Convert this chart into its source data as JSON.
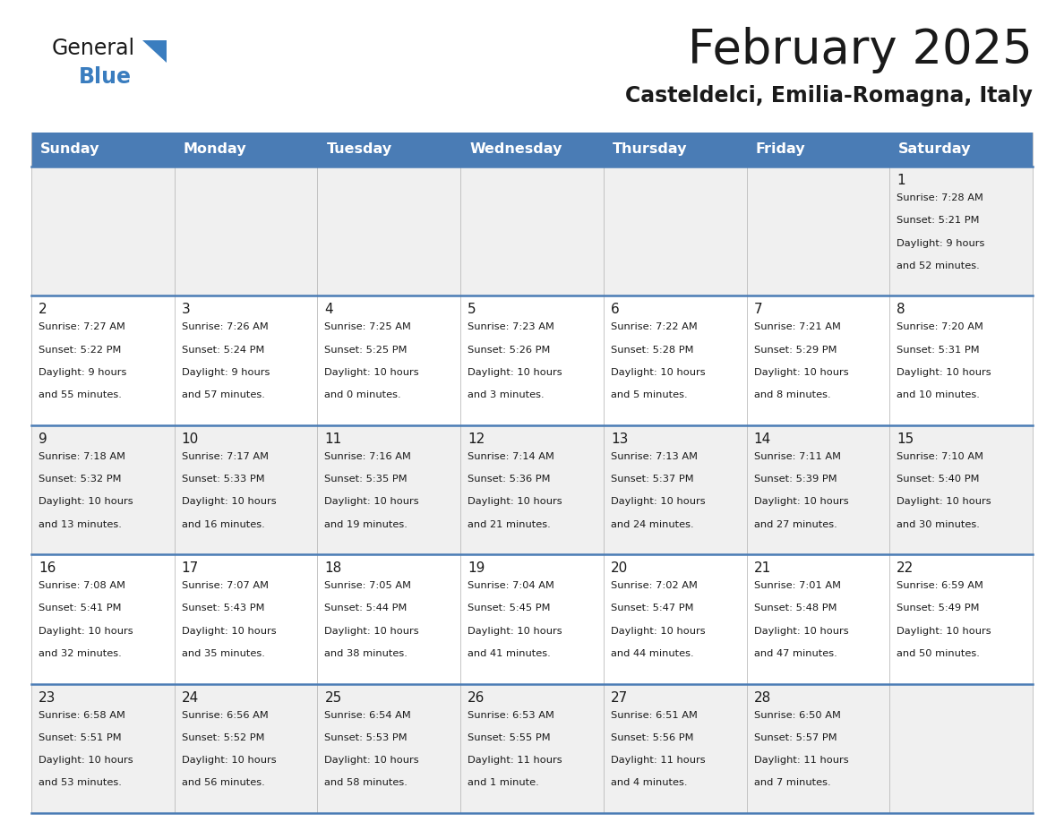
{
  "title": "February 2025",
  "subtitle": "Casteldelci, Emilia-Romagna, Italy",
  "header_bg": "#4a7cb5",
  "header_text": "#ffffff",
  "row_bg_even": "#f0f0f0",
  "row_bg_odd": "#ffffff",
  "separator_color": "#4a7cb5",
  "cell_line_color": "#bbbbbb",
  "days_of_week": [
    "Sunday",
    "Monday",
    "Tuesday",
    "Wednesday",
    "Thursday",
    "Friday",
    "Saturday"
  ],
  "calendar_data": [
    [
      null,
      null,
      null,
      null,
      null,
      null,
      {
        "day": "1",
        "sunrise": "7:28 AM",
        "sunset": "5:21 PM",
        "daylight1": "9 hours",
        "daylight2": "and 52 minutes."
      }
    ],
    [
      {
        "day": "2",
        "sunrise": "7:27 AM",
        "sunset": "5:22 PM",
        "daylight1": "9 hours",
        "daylight2": "and 55 minutes."
      },
      {
        "day": "3",
        "sunrise": "7:26 AM",
        "sunset": "5:24 PM",
        "daylight1": "9 hours",
        "daylight2": "and 57 minutes."
      },
      {
        "day": "4",
        "sunrise": "7:25 AM",
        "sunset": "5:25 PM",
        "daylight1": "10 hours",
        "daylight2": "and 0 minutes."
      },
      {
        "day": "5",
        "sunrise": "7:23 AM",
        "sunset": "5:26 PM",
        "daylight1": "10 hours",
        "daylight2": "and 3 minutes."
      },
      {
        "day": "6",
        "sunrise": "7:22 AM",
        "sunset": "5:28 PM",
        "daylight1": "10 hours",
        "daylight2": "and 5 minutes."
      },
      {
        "day": "7",
        "sunrise": "7:21 AM",
        "sunset": "5:29 PM",
        "daylight1": "10 hours",
        "daylight2": "and 8 minutes."
      },
      {
        "day": "8",
        "sunrise": "7:20 AM",
        "sunset": "5:31 PM",
        "daylight1": "10 hours",
        "daylight2": "and 10 minutes."
      }
    ],
    [
      {
        "day": "9",
        "sunrise": "7:18 AM",
        "sunset": "5:32 PM",
        "daylight1": "10 hours",
        "daylight2": "and 13 minutes."
      },
      {
        "day": "10",
        "sunrise": "7:17 AM",
        "sunset": "5:33 PM",
        "daylight1": "10 hours",
        "daylight2": "and 16 minutes."
      },
      {
        "day": "11",
        "sunrise": "7:16 AM",
        "sunset": "5:35 PM",
        "daylight1": "10 hours",
        "daylight2": "and 19 minutes."
      },
      {
        "day": "12",
        "sunrise": "7:14 AM",
        "sunset": "5:36 PM",
        "daylight1": "10 hours",
        "daylight2": "and 21 minutes."
      },
      {
        "day": "13",
        "sunrise": "7:13 AM",
        "sunset": "5:37 PM",
        "daylight1": "10 hours",
        "daylight2": "and 24 minutes."
      },
      {
        "day": "14",
        "sunrise": "7:11 AM",
        "sunset": "5:39 PM",
        "daylight1": "10 hours",
        "daylight2": "and 27 minutes."
      },
      {
        "day": "15",
        "sunrise": "7:10 AM",
        "sunset": "5:40 PM",
        "daylight1": "10 hours",
        "daylight2": "and 30 minutes."
      }
    ],
    [
      {
        "day": "16",
        "sunrise": "7:08 AM",
        "sunset": "5:41 PM",
        "daylight1": "10 hours",
        "daylight2": "and 32 minutes."
      },
      {
        "day": "17",
        "sunrise": "7:07 AM",
        "sunset": "5:43 PM",
        "daylight1": "10 hours",
        "daylight2": "and 35 minutes."
      },
      {
        "day": "18",
        "sunrise": "7:05 AM",
        "sunset": "5:44 PM",
        "daylight1": "10 hours",
        "daylight2": "and 38 minutes."
      },
      {
        "day": "19",
        "sunrise": "7:04 AM",
        "sunset": "5:45 PM",
        "daylight1": "10 hours",
        "daylight2": "and 41 minutes."
      },
      {
        "day": "20",
        "sunrise": "7:02 AM",
        "sunset": "5:47 PM",
        "daylight1": "10 hours",
        "daylight2": "and 44 minutes."
      },
      {
        "day": "21",
        "sunrise": "7:01 AM",
        "sunset": "5:48 PM",
        "daylight1": "10 hours",
        "daylight2": "and 47 minutes."
      },
      {
        "day": "22",
        "sunrise": "6:59 AM",
        "sunset": "5:49 PM",
        "daylight1": "10 hours",
        "daylight2": "and 50 minutes."
      }
    ],
    [
      {
        "day": "23",
        "sunrise": "6:58 AM",
        "sunset": "5:51 PM",
        "daylight1": "10 hours",
        "daylight2": "and 53 minutes."
      },
      {
        "day": "24",
        "sunrise": "6:56 AM",
        "sunset": "5:52 PM",
        "daylight1": "10 hours",
        "daylight2": "and 56 minutes."
      },
      {
        "day": "25",
        "sunrise": "6:54 AM",
        "sunset": "5:53 PM",
        "daylight1": "10 hours",
        "daylight2": "and 58 minutes."
      },
      {
        "day": "26",
        "sunrise": "6:53 AM",
        "sunset": "5:55 PM",
        "daylight1": "11 hours",
        "daylight2": "and 1 minute."
      },
      {
        "day": "27",
        "sunrise": "6:51 AM",
        "sunset": "5:56 PM",
        "daylight1": "11 hours",
        "daylight2": "and 4 minutes."
      },
      {
        "day": "28",
        "sunrise": "6:50 AM",
        "sunset": "5:57 PM",
        "daylight1": "11 hours",
        "daylight2": "and 7 minutes."
      },
      null
    ]
  ],
  "logo_general_color": "#1a1a1a",
  "logo_blue_color": "#3a7dbf",
  "logo_triangle_color": "#3a7dbf"
}
